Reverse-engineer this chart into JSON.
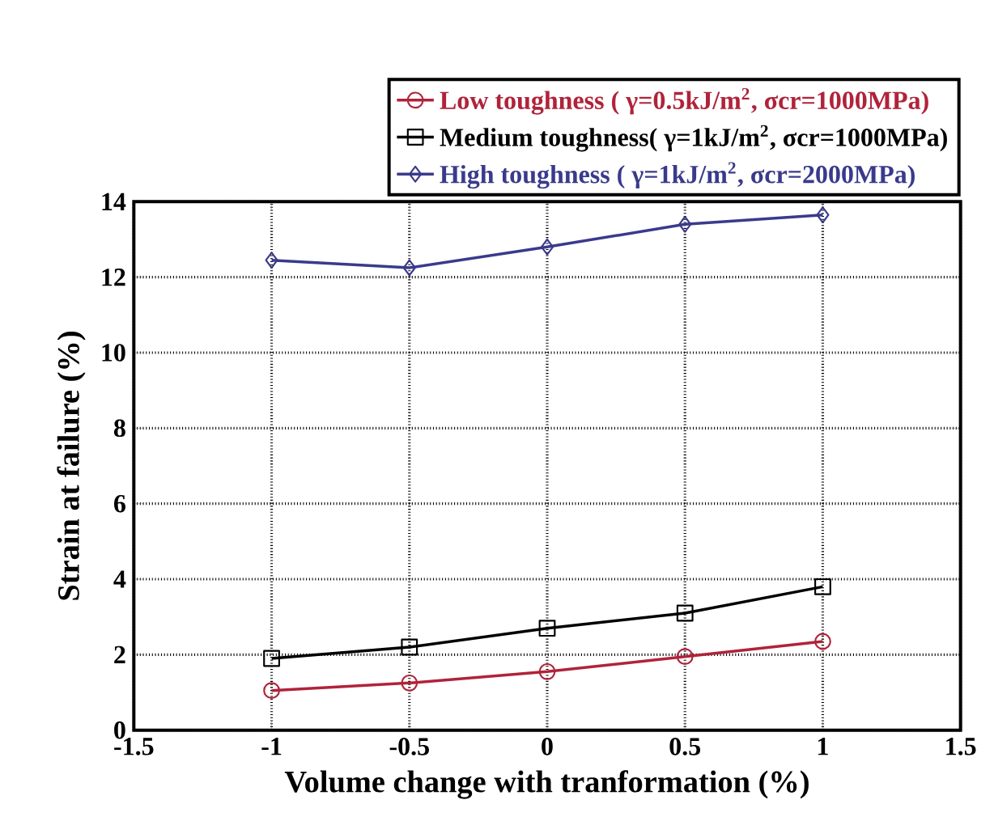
{
  "chart_data": {
    "type": "line",
    "xlabel": "Volume change with tranformation (%)",
    "ylabel": "Strain at failure (%)",
    "x": [
      -1,
      -0.5,
      0,
      0.5,
      1
    ],
    "series": [
      {
        "name": "Low   toughness   ( γ=0.5kJ/m$^{2}$, σcr=1000MPa)",
        "color": "#b0233a",
        "marker": "circle",
        "values": [
          1.05,
          1.25,
          1.55,
          1.95,
          2.35
        ]
      },
      {
        "name": "Medium toughness( γ=1kJ/m$^{2}$, σcr=1000MPa)",
        "color": "#000000",
        "marker": "square",
        "values": [
          1.9,
          2.2,
          2.7,
          3.1,
          3.8
        ]
      },
      {
        "name": "High  toughness   ( γ=1kJ/m$^{2}$, σcr=2000MPa)",
        "color": "#3a3a8c",
        "marker": "diamond",
        "values": [
          12.45,
          12.25,
          12.8,
          13.4,
          13.65
        ]
      }
    ],
    "xlim": [
      -1.5,
      1.5
    ],
    "xticks": [
      -1.5,
      -1,
      -0.5,
      0,
      0.5,
      1,
      1.5
    ],
    "ylim": [
      0,
      14
    ],
    "yticks": [
      0,
      2,
      4,
      6,
      8,
      10,
      12,
      14
    ],
    "grid": true,
    "legend": "top",
    "line_style": "solid"
  }
}
